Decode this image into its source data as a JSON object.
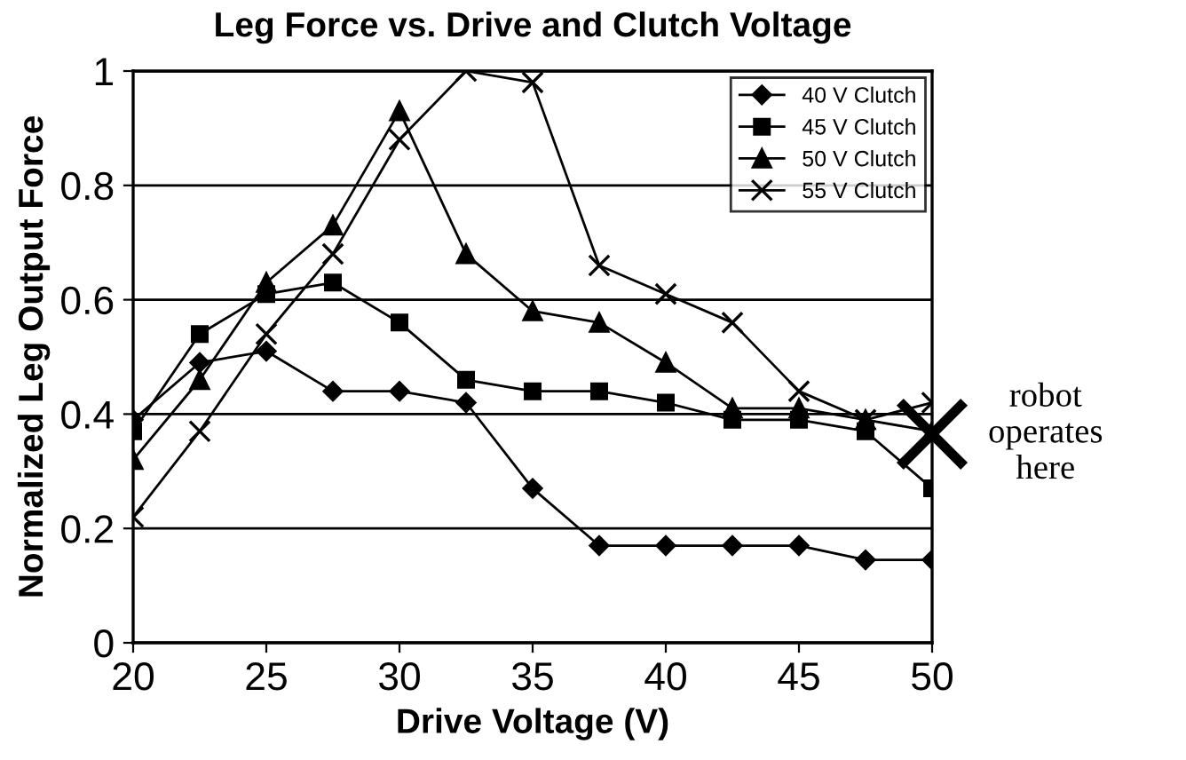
{
  "chart_data": {
    "type": "line",
    "title": "Leg Force vs. Drive and Clutch Voltage",
    "xlabel": "Drive Voltage (V)",
    "ylabel": "Normalized Leg Output Force",
    "x": [
      20,
      22.5,
      25,
      27.5,
      30,
      32.5,
      35,
      37.5,
      40,
      42.5,
      45,
      47.5,
      50
    ],
    "series": [
      {
        "name": "40 V Clutch",
        "color": "#000000",
        "marker": "diamond",
        "values": [
          0.39,
          0.49,
          0.51,
          0.44,
          0.44,
          0.42,
          0.27,
          0.17,
          0.17,
          0.17,
          0.17,
          0.145,
          0.145
        ]
      },
      {
        "name": "45 V Clutch",
        "color": "#000000",
        "marker": "square",
        "values": [
          0.37,
          0.54,
          0.61,
          0.63,
          0.56,
          0.46,
          0.44,
          0.44,
          0.42,
          0.39,
          0.39,
          0.37,
          0.27
        ]
      },
      {
        "name": "50 V Clutch",
        "color": "#000000",
        "marker": "triangle",
        "values": [
          0.32,
          0.46,
          0.63,
          0.73,
          0.93,
          0.68,
          0.58,
          0.56,
          0.49,
          0.41,
          0.41,
          0.39,
          0.37
        ]
      },
      {
        "name": "55 V Clutch",
        "color": "#000000",
        "marker": "cross",
        "values": [
          0.22,
          0.37,
          0.54,
          0.68,
          0.88,
          1.0,
          0.98,
          0.66,
          0.61,
          0.56,
          0.44,
          0.39,
          0.42
        ]
      }
    ],
    "xlim": [
      20,
      50
    ],
    "xticks": [
      20,
      25,
      30,
      35,
      40,
      45,
      50
    ],
    "ylim": [
      0,
      1
    ],
    "yticks": [
      0,
      0.2,
      0.4,
      0.6,
      0.8,
      1
    ],
    "grid": "y",
    "legend": "top right",
    "annotations": [
      {
        "text": "robot\noperates\nhere",
        "x": 50,
        "y": 0.365
      }
    ]
  }
}
